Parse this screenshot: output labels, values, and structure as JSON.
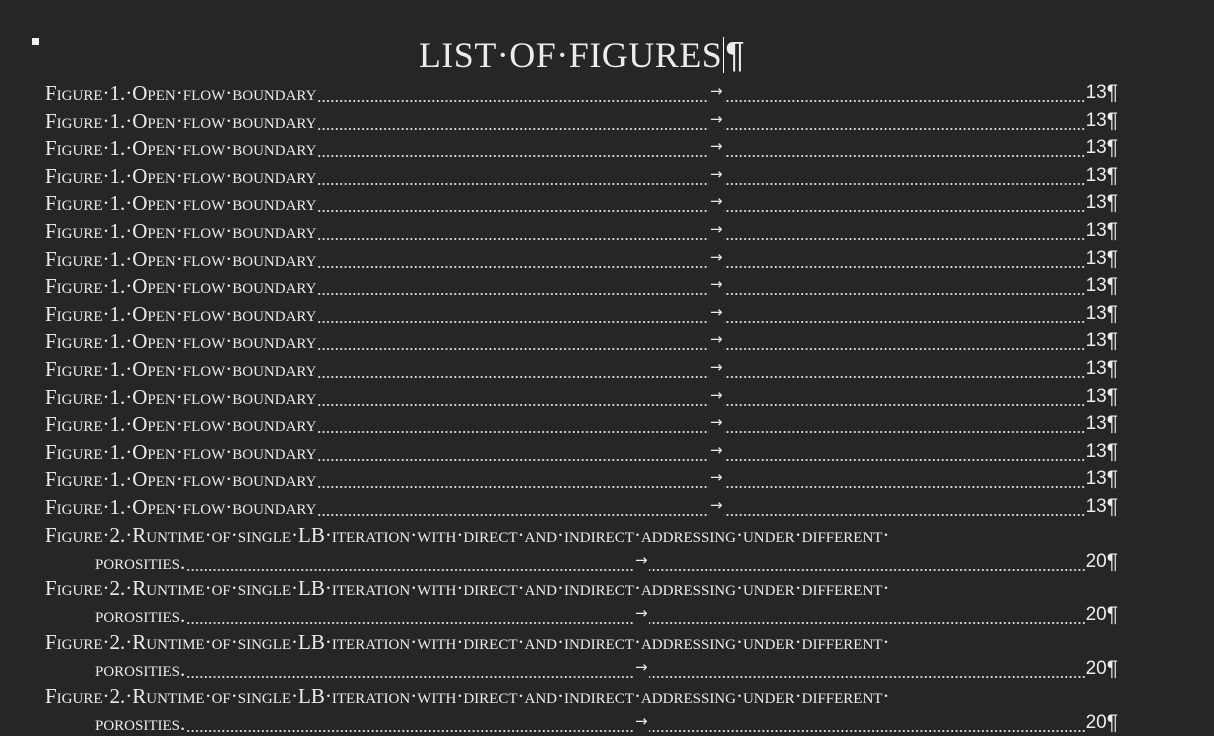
{
  "document": {
    "title": "LIST·OF·FIGURES",
    "paragraph_mark": "¶",
    "tab_mark": "→",
    "entries": [
      {
        "label": "Figure·1.·Open·flow·boundary",
        "page": "13"
      },
      {
        "label": "Figure·1.·Open·flow·boundary",
        "page": "13"
      },
      {
        "label": "Figure·1.·Open·flow·boundary",
        "page": "13"
      },
      {
        "label": "Figure·1.·Open·flow·boundary",
        "page": "13"
      },
      {
        "label": "Figure·1.·Open·flow·boundary",
        "page": "13"
      },
      {
        "label": "Figure·1.·Open·flow·boundary",
        "page": "13"
      },
      {
        "label": "Figure·1.·Open·flow·boundary",
        "page": "13"
      },
      {
        "label": "Figure·1.·Open·flow·boundary",
        "page": "13"
      },
      {
        "label": "Figure·1.·Open·flow·boundary",
        "page": "13"
      },
      {
        "label": "Figure·1.·Open·flow·boundary",
        "page": "13"
      },
      {
        "label": "Figure·1.·Open·flow·boundary",
        "page": "13"
      },
      {
        "label": "Figure·1.·Open·flow·boundary",
        "page": "13"
      },
      {
        "label": "Figure·1.·Open·flow·boundary",
        "page": "13"
      },
      {
        "label": "Figure·1.·Open·flow·boundary",
        "page": "13"
      },
      {
        "label": "Figure·1.·Open·flow·boundary",
        "page": "13"
      },
      {
        "label": "Figure·1.·Open·flow·boundary",
        "page": "13"
      },
      {
        "label": "Figure·2.·Runtime·of·single·LB·iteration·with·direct·and·indirect·addressing·under·different·",
        "continuation": "porosities.",
        "page": "20"
      },
      {
        "label": "Figure·2.·Runtime·of·single·LB·iteration·with·direct·and·indirect·addressing·under·different·",
        "continuation": "porosities.",
        "page": "20"
      },
      {
        "label": "Figure·2.·Runtime·of·single·LB·iteration·with·direct·and·indirect·addressing·under·different·",
        "continuation": "porosities.",
        "page": "20"
      },
      {
        "label": "Figure·2.·Runtime·of·single·LB·iteration·with·direct·and·indirect·addressing·under·different·",
        "continuation": "porosities.",
        "page": "20"
      }
    ]
  }
}
